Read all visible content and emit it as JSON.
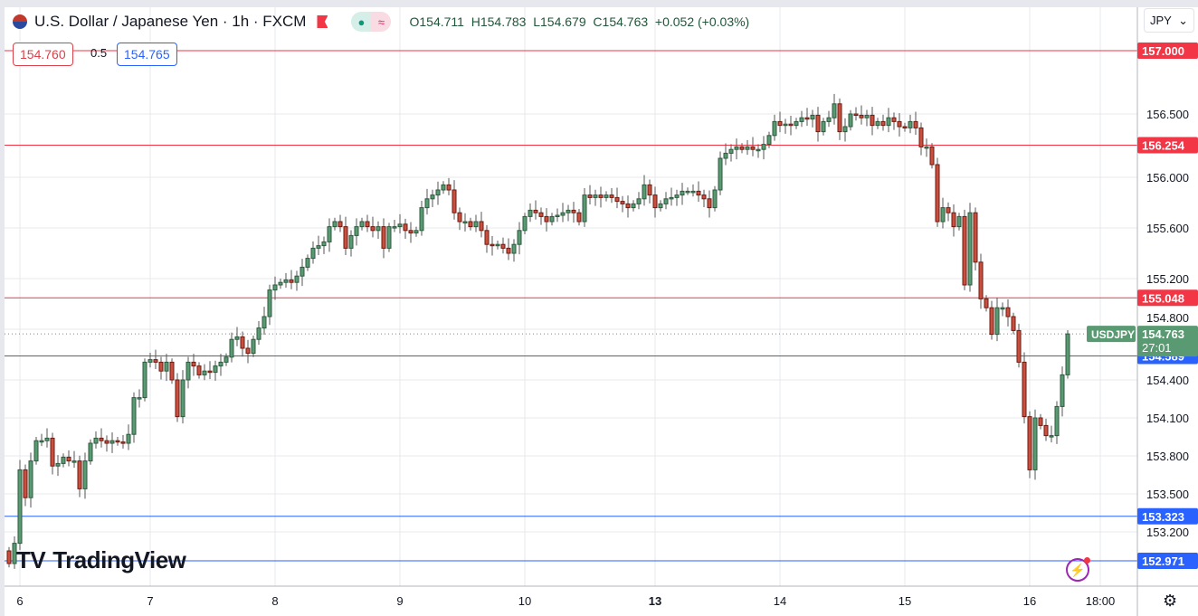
{
  "header": {
    "title": "U.S. Dollar / Japanese Yen · 1h · FXCM",
    "open": "O154.711",
    "high": "H154.783",
    "low": "L154.679",
    "close": "C154.763",
    "change": "+0.052 (+0.03%)",
    "dot_icon": "●",
    "wave_icon": "≈"
  },
  "trade": {
    "sell": "154.760",
    "spread": "0.5",
    "buy": "154.765"
  },
  "currency_selector": {
    "value": "JPY",
    "chevron": "⌄"
  },
  "logo_text": "TradingView",
  "settings_icon": "⚙",
  "colors": {
    "up": "#5a9a73",
    "down": "#c94f3f",
    "red_line": "#f23645",
    "blue_line": "#2962ff",
    "price_label": "#5a9a73"
  },
  "chart_data": {
    "type": "candlestick",
    "symbol": "USDJPY",
    "interval": "1h",
    "ylim": [
      152.78,
      157.5
    ],
    "y_ticks": [
      156.5,
      156.0,
      155.6,
      155.2,
      154.8,
      154.4,
      154.1,
      153.8,
      153.5,
      153.2
    ],
    "x_ticks": [
      {
        "label": "6",
        "hour": 2
      },
      {
        "label": "7",
        "hour": 26
      },
      {
        "label": "8",
        "hour": 49
      },
      {
        "label": "9",
        "hour": 72
      },
      {
        "label": "10",
        "hour": 95
      },
      {
        "label": "13",
        "hour": 119
      },
      {
        "label": "14",
        "hour": 142
      },
      {
        "label": "15",
        "hour": 165
      },
      {
        "label": "16",
        "hour": 188
      },
      {
        "label": "18:00",
        "hour": 201
      }
    ],
    "closes": [
      152.95,
      153.11,
      153.69,
      153.47,
      153.76,
      153.92,
      153.92,
      153.94,
      153.72,
      153.74,
      153.79,
      153.76,
      153.76,
      153.54,
      153.76,
      153.9,
      153.94,
      153.92,
      153.9,
      153.92,
      153.91,
      153.9,
      153.97,
      154.26,
      154.26,
      154.54,
      154.56,
      154.54,
      154.47,
      154.54,
      154.4,
      154.11,
      154.4,
      154.54,
      154.51,
      154.44,
      154.47,
      154.46,
      154.51,
      154.54,
      154.58,
      154.72,
      154.74,
      154.65,
      154.61,
      154.72,
      154.81,
      154.9,
      155.11,
      155.15,
      155.17,
      155.19,
      155.17,
      155.22,
      155.29,
      155.36,
      155.44,
      155.46,
      155.49,
      155.61,
      155.65,
      155.61,
      155.44,
      155.54,
      155.61,
      155.65,
      155.61,
      155.58,
      155.61,
      155.44,
      155.61,
      155.61,
      155.63,
      155.58,
      155.56,
      155.58,
      155.76,
      155.83,
      155.86,
      155.9,
      155.94,
      155.9,
      155.72,
      155.65,
      155.65,
      155.61,
      155.65,
      155.58,
      155.47,
      155.46,
      155.47,
      155.44,
      155.4,
      155.47,
      155.58,
      155.69,
      155.74,
      155.72,
      155.69,
      155.65,
      155.69,
      155.7,
      155.72,
      155.74,
      155.72,
      155.65,
      155.86,
      155.84,
      155.86,
      155.84,
      155.86,
      155.84,
      155.81,
      155.79,
      155.76,
      155.79,
      155.83,
      155.94,
      155.86,
      155.76,
      155.79,
      155.83,
      155.84,
      155.86,
      155.89,
      155.89,
      155.89,
      155.86,
      155.83,
      155.76,
      155.9,
      156.15,
      156.19,
      156.22,
      156.24,
      156.22,
      156.24,
      156.22,
      156.22,
      156.26,
      156.33,
      156.44,
      156.41,
      156.42,
      156.41,
      156.44,
      156.47,
      156.46,
      156.49,
      156.36,
      156.44,
      156.47,
      156.58,
      156.36,
      156.4,
      156.5,
      156.49,
      156.47,
      156.49,
      156.41,
      156.44,
      156.41,
      156.47,
      156.44,
      156.4,
      156.39,
      156.44,
      156.39,
      156.24,
      156.24,
      156.1,
      155.65,
      155.76,
      155.72,
      155.61,
      155.69,
      155.15,
      155.72,
      155.33,
      155.04,
      154.97,
      154.76,
      154.97,
      154.97,
      154.9,
      154.79,
      154.54,
      154.11,
      153.69,
      154.1,
      154.04,
      153.96,
      153.96,
      154.19,
      154.44,
      154.763
    ],
    "horizontal_levels": [
      {
        "price": 157.0,
        "label": "157.000",
        "color": "red"
      },
      {
        "price": 156.254,
        "label": "156.254",
        "color": "red"
      },
      {
        "price": 155.048,
        "label": "155.048",
        "color": "red"
      },
      {
        "price": 154.589,
        "label": "154.589",
        "color": "blue"
      },
      {
        "price": 153.323,
        "label": "153.323",
        "color": "blue"
      },
      {
        "price": 152.971,
        "label": "152.971",
        "color": "blue"
      }
    ],
    "last_price": {
      "price": 154.763,
      "label": "154.763",
      "countdown": "27:01",
      "symbol_label": "USDJPY"
    }
  }
}
